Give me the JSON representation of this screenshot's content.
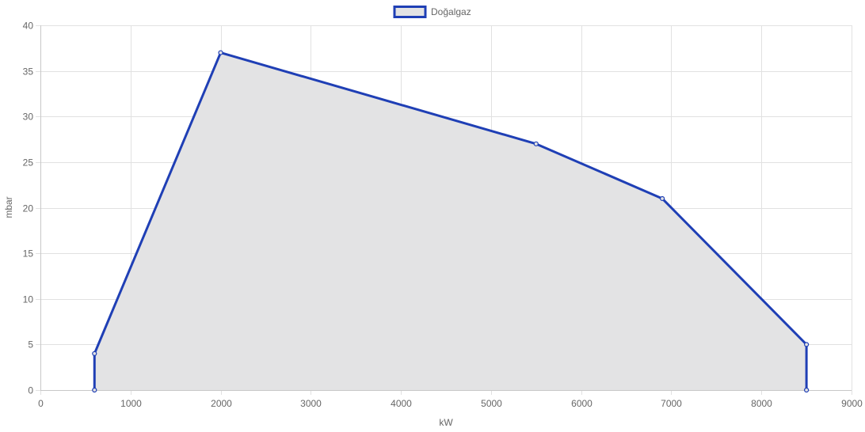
{
  "chart_data": {
    "type": "area",
    "series": [
      {
        "name": "Doğalgaz",
        "x": [
          600,
          600,
          2000,
          5500,
          6900,
          8500,
          8500
        ],
        "y": [
          0,
          4,
          37,
          27,
          21,
          5,
          0
        ]
      }
    ],
    "xlabel": "kW",
    "ylabel": "mbar",
    "xlim": [
      0,
      9000
    ],
    "ylim": [
      0,
      40
    ],
    "xticks": [
      "0",
      "1000",
      "2000",
      "3000",
      "4000",
      "5000",
      "6000",
      "7000",
      "8000",
      "9000"
    ],
    "yticks": [
      "0",
      "5",
      "10",
      "15",
      "20",
      "25",
      "30",
      "35",
      "40"
    ],
    "grid": true,
    "legend_position": "top-center",
    "colors": {
      "line": "#1f3fb5",
      "fill": "#e3e3e4",
      "grid": "#e1e1e1",
      "text": "#666666"
    }
  }
}
